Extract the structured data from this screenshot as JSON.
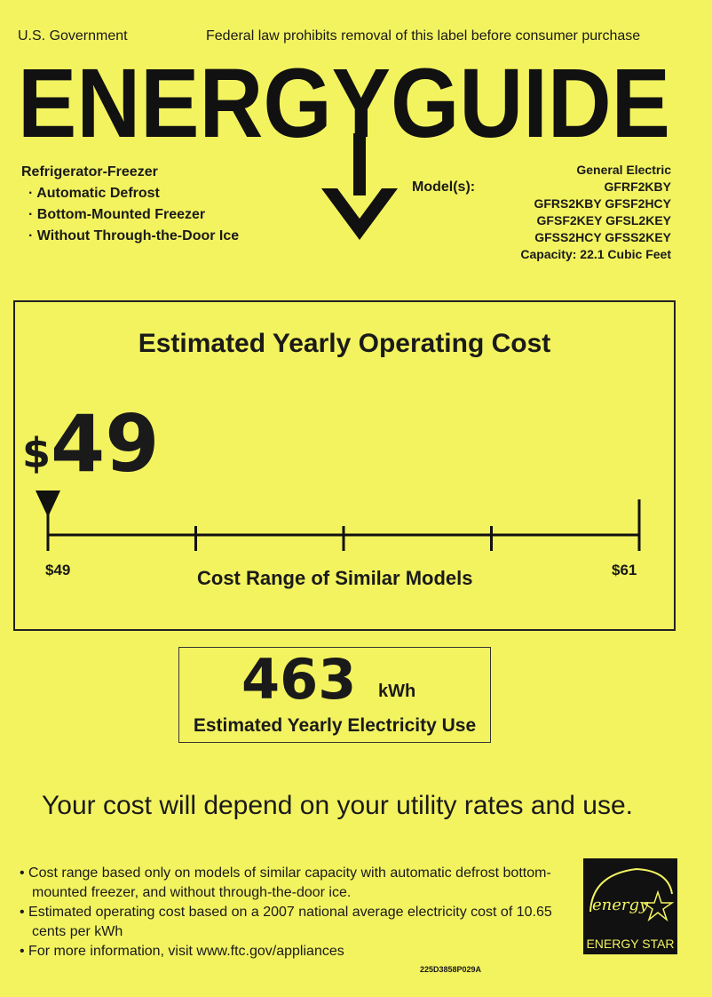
{
  "header": {
    "government": "U.S. Government",
    "notice": "Federal law prohibits removal of this label before consumer purchase",
    "logo_text": "ENERGYGUIDE"
  },
  "appliance": {
    "type": "Refrigerator-Freezer",
    "features": [
      "Automatic Defrost",
      "Bottom-Mounted Freezer",
      "Without Through-the-Door Ice"
    ]
  },
  "models": {
    "label": "Model(s):",
    "manufacturer": "General Electric",
    "lines": [
      "GFRF2KBY",
      "GFRS2KBY GFSF2HCY",
      "GFSF2KEY GFSL2KEY",
      "GFSS2HCY GFSS2KEY"
    ],
    "capacity": "Capacity: 22.1 Cubic Feet"
  },
  "cost": {
    "title": "Estimated Yearly Operating Cost",
    "currency": "$",
    "value": "49",
    "range_min_label": "$49",
    "range_max_label": "$61",
    "range_min": 49,
    "range_max": 61,
    "marker_value": 49,
    "range_label": "Cost Range of Similar Models"
  },
  "electricity": {
    "value": "463",
    "unit": "kWh",
    "label": "Estimated Yearly Electricity Use"
  },
  "tagline": "Your cost will depend on your utility rates and use.",
  "notes": [
    "Cost range based only on models of similar capacity with automatic defrost bottom-mounted freezer, and without through-the-door ice.",
    "Estimated operating cost based on a 2007 national average electricity cost of 10.65 cents per kWh",
    "For more information, visit www.ftc.gov/appliances"
  ],
  "label_code": "225D3858P029A",
  "energy_star": {
    "script": "energy",
    "label": "ENERGY STAR"
  },
  "colors": {
    "background": "#f3f360",
    "ink": "#1a1a1a"
  }
}
